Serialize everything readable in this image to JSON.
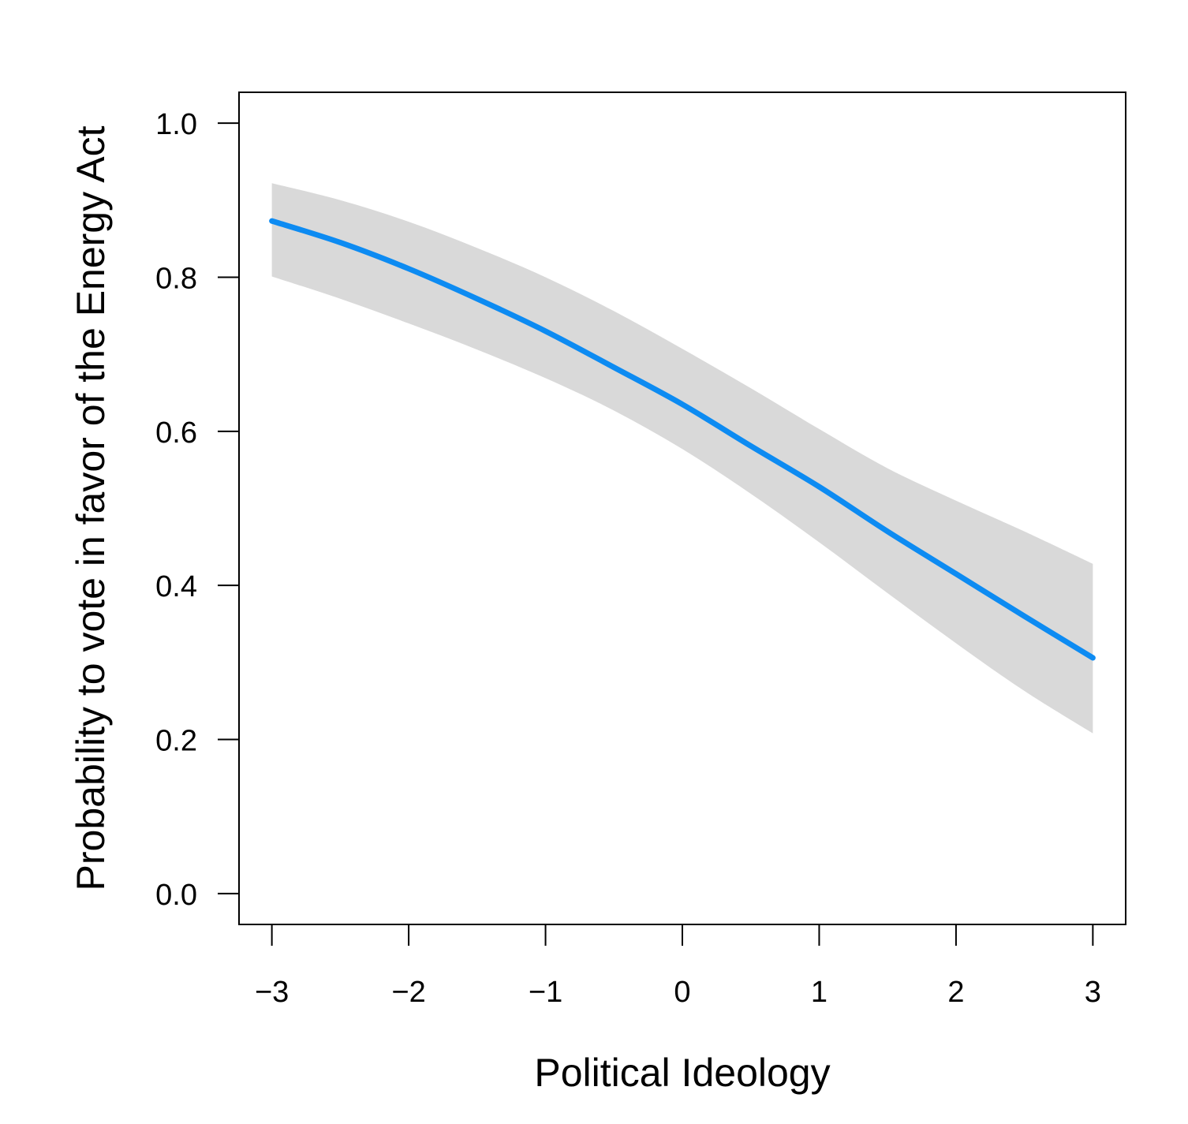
{
  "chart_data": {
    "type": "line",
    "title": "",
    "xlabel": "Political Ideology",
    "ylabel": "Probability to vote in favor of the Energy Act",
    "xlim": [
      -3.24,
      3.24
    ],
    "ylim": [
      -0.04,
      1.04
    ],
    "grid": false,
    "x_ticks": [
      -3,
      -2,
      -1,
      0,
      1,
      2,
      3
    ],
    "x_tick_labels": [
      "−3",
      "−2",
      "−1",
      "0",
      "1",
      "2",
      "3"
    ],
    "y_ticks": [
      0.0,
      0.2,
      0.4,
      0.6,
      0.8,
      1.0
    ],
    "y_tick_labels": [
      "0.0",
      "0.2",
      "0.4",
      "0.6",
      "0.8",
      "1.0"
    ],
    "series": [
      {
        "x": [
          -3,
          -2.5,
          -2,
          -1.5,
          -1,
          -0.5,
          0,
          0.5,
          1,
          1.5,
          2,
          2.5,
          3
        ],
        "y": [
          0.873,
          0.845,
          0.811,
          0.772,
          0.73,
          0.683,
          0.635,
          0.581,
          0.528,
          0.47,
          0.415,
          0.36,
          0.306
        ],
        "lower": [
          0.801,
          0.772,
          0.74,
          0.706,
          0.669,
          0.627,
          0.577,
          0.519,
          0.456,
          0.39,
          0.325,
          0.263,
          0.208
        ],
        "upper": [
          0.922,
          0.9,
          0.872,
          0.838,
          0.8,
          0.756,
          0.707,
          0.656,
          0.603,
          0.552,
          0.51,
          0.47,
          0.428
        ],
        "color": "#0d8bf2",
        "band_color": "#d9d9d9"
      }
    ]
  }
}
